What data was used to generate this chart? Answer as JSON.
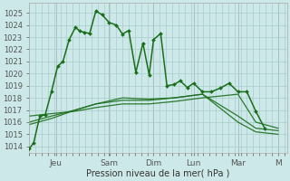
{
  "bg_color": "#cce8e8",
  "grid_color": "#aacccc",
  "line_color": "#1a6e1a",
  "ylim": [
    1013.5,
    1025.8
  ],
  "yticks": [
    1014,
    1015,
    1016,
    1017,
    1018,
    1019,
    1020,
    1021,
    1022,
    1023,
    1024,
    1025
  ],
  "xlabel": "Pression niveau de la mer( hPa )",
  "day_labels": [
    "Jeu",
    "Sam",
    "Dim",
    "Lun",
    "Mar",
    "M"
  ],
  "day_positions": [
    30,
    90,
    140,
    185,
    235,
    280
  ],
  "main_line_x": [
    0,
    5,
    12,
    18,
    25,
    32,
    38,
    45,
    52,
    57,
    62,
    68,
    75,
    82,
    90,
    98,
    105,
    112,
    120,
    128,
    135,
    140,
    148,
    155,
    163,
    170,
    178,
    185,
    195,
    205,
    215,
    225,
    235,
    245,
    255,
    265
  ],
  "main_line_y": [
    1013.8,
    1014.3,
    1016.5,
    1016.6,
    1018.5,
    1020.6,
    1021.0,
    1022.8,
    1023.8,
    1023.5,
    1023.4,
    1023.3,
    1025.15,
    1024.85,
    1024.2,
    1024.0,
    1023.25,
    1023.55,
    1020.1,
    1022.5,
    1019.9,
    1022.8,
    1023.3,
    1019.0,
    1019.1,
    1019.4,
    1018.85,
    1019.2,
    1018.5,
    1018.5,
    1018.8,
    1019.2,
    1018.5,
    1018.5,
    1016.9,
    1015.5
  ],
  "band1_x": [
    0,
    25,
    52,
    75,
    105,
    135,
    163,
    195,
    235,
    255,
    280
  ],
  "band1_y": [
    1016.5,
    1016.7,
    1016.9,
    1017.2,
    1017.5,
    1017.5,
    1017.7,
    1018.0,
    1018.3,
    1016.0,
    1015.5
  ],
  "band2_x": [
    0,
    25,
    52,
    75,
    105,
    135,
    163,
    195,
    235,
    255,
    280
  ],
  "band2_y": [
    1016.0,
    1016.5,
    1017.0,
    1017.5,
    1017.8,
    1017.8,
    1018.0,
    1018.3,
    1016.5,
    1015.5,
    1015.3
  ],
  "band3_x": [
    0,
    25,
    52,
    75,
    105,
    135,
    163,
    195,
    235,
    255,
    280
  ],
  "band3_y": [
    1015.8,
    1016.3,
    1017.0,
    1017.5,
    1018.0,
    1017.9,
    1018.0,
    1018.3,
    1016.0,
    1015.2,
    1015.0
  ]
}
